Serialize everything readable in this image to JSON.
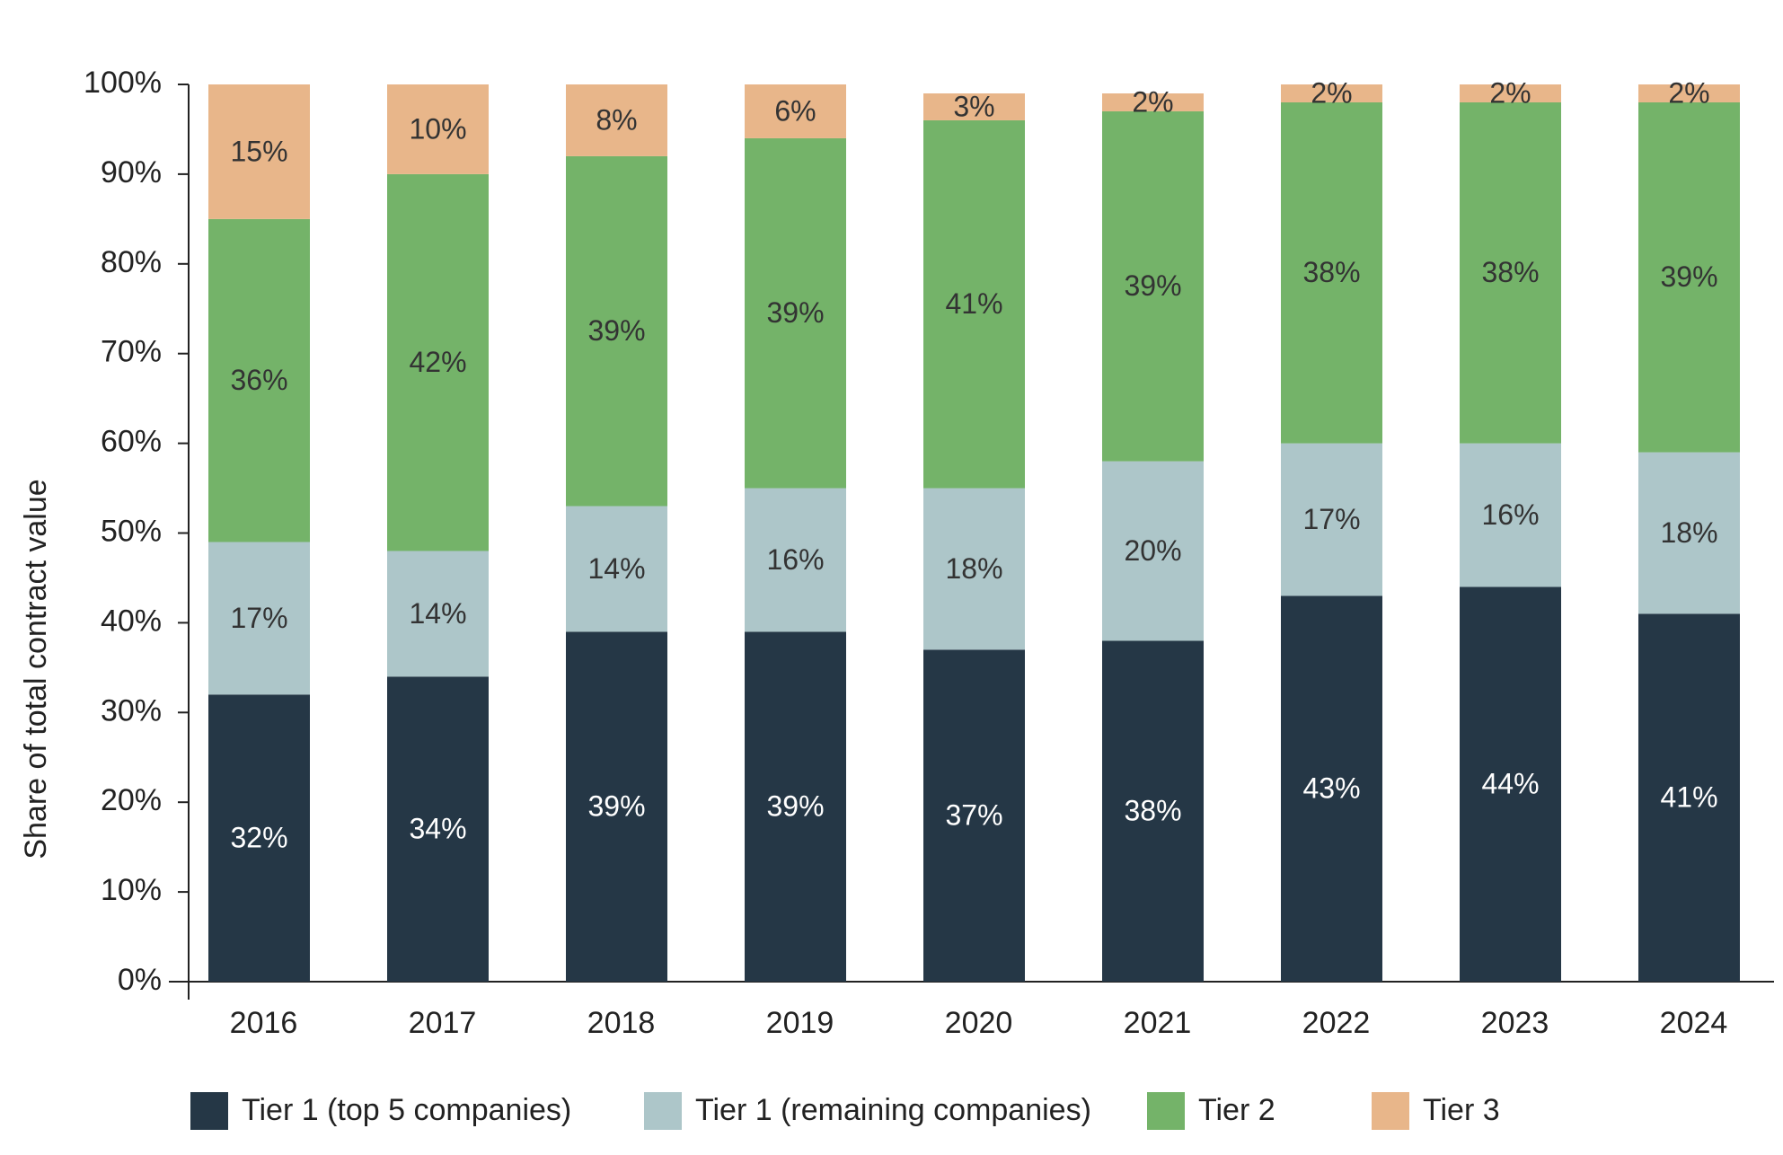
{
  "chart_data": {
    "type": "stacked-bar",
    "y_label": "Share of total contract value",
    "categories": [
      "2016",
      "2017",
      "2018",
      "2019",
      "2020",
      "2021",
      "2022",
      "2023",
      "2024"
    ],
    "series": [
      {
        "name": "Tier 1 (top 5 companies)",
        "color": "#253746",
        "values": [
          32,
          34,
          39,
          39,
          37,
          38,
          43,
          44,
          41
        ],
        "value_labels": [
          "32%",
          "34%",
          "39%",
          "39%",
          "37%",
          "38%",
          "43%",
          "44%",
          "41%"
        ]
      },
      {
        "name": "Tier 1 (remaining companies)",
        "color": "#adc6c9",
        "values": [
          17,
          14,
          14,
          16,
          18,
          20,
          17,
          16,
          18
        ],
        "value_labels": [
          "17%",
          "14%",
          "14%",
          "16%",
          "18%",
          "20%",
          "17%",
          "16%",
          "18%"
        ]
      },
      {
        "name": "Tier 2",
        "color": "#74b369",
        "values": [
          36,
          42,
          39,
          39,
          41,
          39,
          38,
          38,
          39
        ],
        "value_labels": [
          "36%",
          "42%",
          "39%",
          "39%",
          "41%",
          "39%",
          "38%",
          "38%",
          "39%"
        ]
      },
      {
        "name": "Tier 3",
        "color": "#e8b68a",
        "values": [
          15,
          10,
          8,
          6,
          3,
          2,
          2,
          2,
          2
        ],
        "value_labels": [
          "15%",
          "10%",
          "8%",
          "6%",
          "3%",
          "2%",
          "2%",
          "2%",
          "2%"
        ]
      }
    ],
    "ylim": [
      0,
      100
    ],
    "yticks": [
      {
        "value": 0,
        "label": "0%"
      },
      {
        "value": 10,
        "label": "10%"
      },
      {
        "value": 20,
        "label": "20%"
      },
      {
        "value": 30,
        "label": "30%"
      },
      {
        "value": 40,
        "label": "40%"
      },
      {
        "value": 50,
        "label": "50%"
      },
      {
        "value": 60,
        "label": "60%"
      },
      {
        "value": 70,
        "label": "70%"
      },
      {
        "value": 80,
        "label": "80%"
      },
      {
        "value": 90,
        "label": "90%"
      },
      {
        "value": 100,
        "label": "100%"
      }
    ],
    "grid": false
  }
}
